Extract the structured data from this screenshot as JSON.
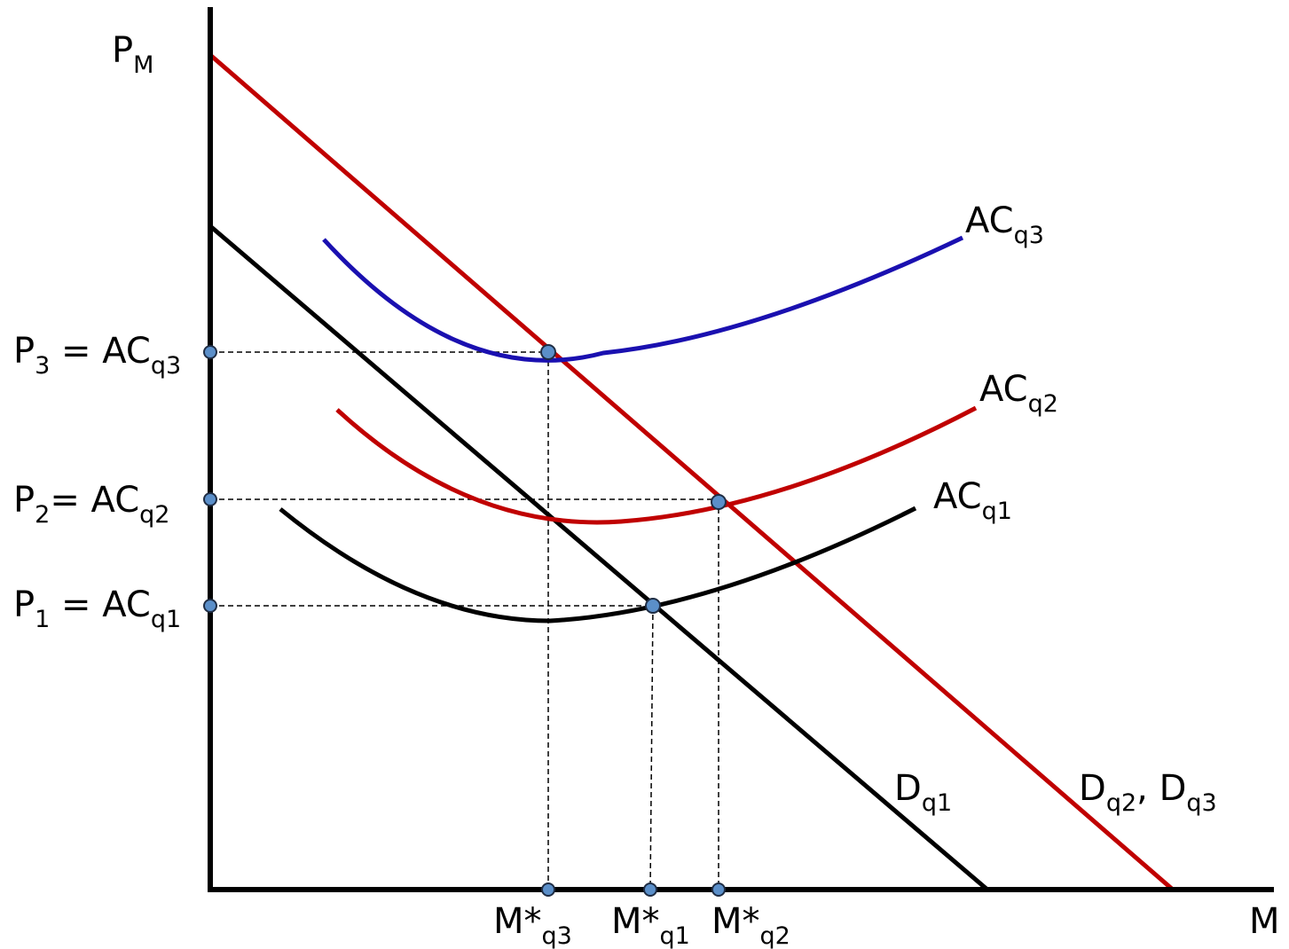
{
  "axes": {
    "y_label": {
      "base": "P",
      "sub": "M"
    },
    "x_label": {
      "base": "M",
      "sub": ""
    }
  },
  "price_labels": [
    {
      "base": "P",
      "sub": "3",
      "rest": " = AC",
      "sub2": "q3"
    },
    {
      "base": "P",
      "sub": "2",
      "rest": "= AC",
      "sub2": "q2"
    },
    {
      "base": "P",
      "sub": "1",
      "rest": " = AC",
      "sub2": "q1"
    }
  ],
  "quantity_labels": [
    {
      "base": "M*",
      "sub": "q3"
    },
    {
      "base": "M*",
      "sub": "q1"
    },
    {
      "base": "M*",
      "sub": "q2"
    }
  ],
  "curve_labels": {
    "ac_q3": {
      "base": "AC",
      "sub": "q3"
    },
    "ac_q2": {
      "base": "AC",
      "sub": "q2"
    },
    "ac_q1": {
      "base": "AC",
      "sub": "q1"
    },
    "d_q1": {
      "base": "D",
      "sub": "q1"
    },
    "d_q2_q3": {
      "base": "D",
      "sub": "q2",
      "sep": ", D",
      "sub2": "q3"
    }
  },
  "colors": {
    "axis": "#000000",
    "demand_q1": "#000000",
    "demand_q2_q3": "#c00000",
    "ac_q1": "#000000",
    "ac_q2": "#c00000",
    "ac_q3": "#1a10b0",
    "point_fill": "#5b8fc9"
  }
}
